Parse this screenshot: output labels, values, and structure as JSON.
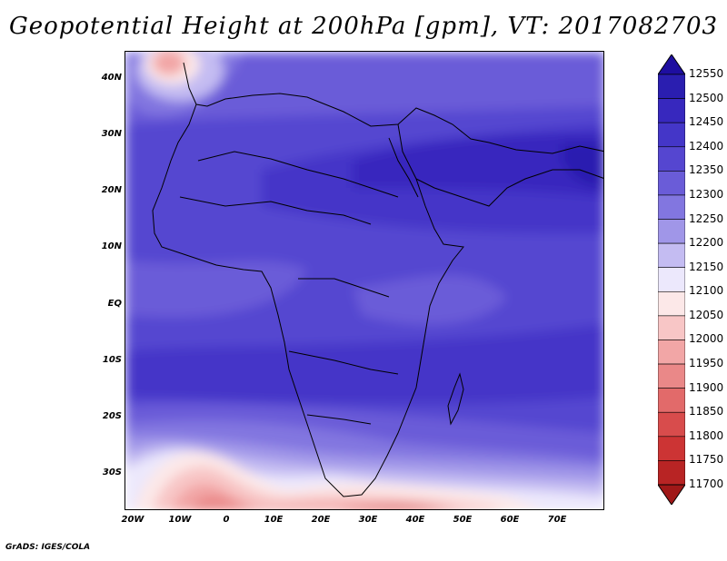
{
  "title": "Geopotential Height at 200hPa [gpm], VT: 2017082703",
  "credit": "GrADS: IGES/COLA",
  "map": {
    "lat_labels": [
      "40N",
      "30N",
      "20N",
      "10N",
      "EQ",
      "10S",
      "20S",
      "30S"
    ],
    "lon_labels": [
      "20W",
      "10W",
      "0",
      "10E",
      "20E",
      "30E",
      "40E",
      "50E",
      "60E",
      "70E"
    ]
  },
  "colorbar": {
    "labels": [
      "12550",
      "12500",
      "12450",
      "12400",
      "12350",
      "12300",
      "12250",
      "12200",
      "12150",
      "12100",
      "12050",
      "12000",
      "11950",
      "11900",
      "11850",
      "11800",
      "11750",
      "11700"
    ],
    "colors": [
      "#1e0ea0",
      "#2a1eb0",
      "#3728be",
      "#4436c8",
      "#5546d0",
      "#6a5cd8",
      "#8276e0",
      "#a096e8",
      "#c4bcf2",
      "#ece8fc",
      "#fce8e8",
      "#f8c6c6",
      "#f2a6a6",
      "#ea8888",
      "#e26a6a",
      "#d84c4c",
      "#cc3434",
      "#b82424",
      "#a01818"
    ]
  }
}
